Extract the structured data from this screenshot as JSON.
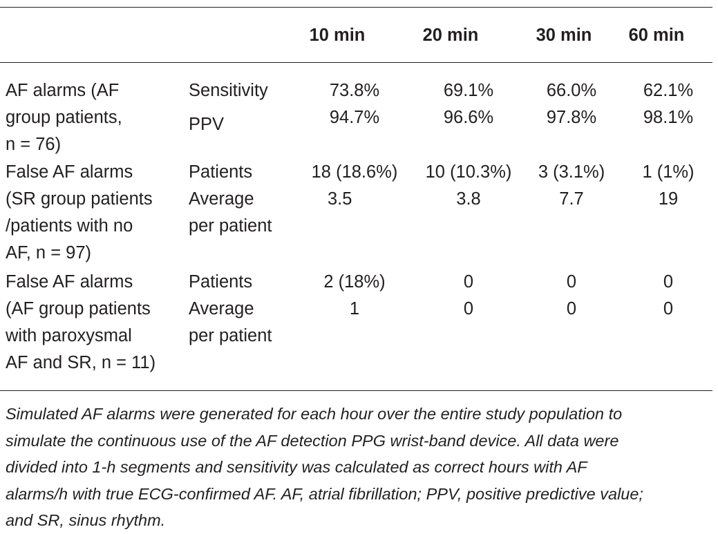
{
  "header": {
    "col1": "",
    "col2": "",
    "times": [
      "10 min",
      "20 min",
      "30 min",
      "60 min"
    ]
  },
  "groups": [
    {
      "label_lines": [
        "AF alarms (AF",
        "group patients,",
        "n = 76)"
      ],
      "metrics": [
        {
          "name_lines": [
            "Sensitivity"
          ],
          "values": [
            "73.8%",
            "69.1%",
            "66.0%",
            "62.1%"
          ]
        },
        {
          "name_lines": [
            "PPV"
          ],
          "values": [
            "94.7%",
            "96.6%",
            "97.8%",
            "98.1%"
          ]
        }
      ]
    },
    {
      "label_lines": [
        "False AF alarms",
        "(SR group patients",
        "/patients with no",
        "AF, n = 97)"
      ],
      "metrics": [
        {
          "name_lines": [
            "Patients"
          ],
          "values": [
            "18 (18.6%)",
            "10 (10.3%)",
            "3 (3.1%)",
            "1 (1%)"
          ]
        },
        {
          "name_lines": [
            "Average",
            "per patient"
          ],
          "values": [
            "3.5",
            "3.8",
            "7.7",
            "19"
          ]
        }
      ]
    },
    {
      "label_lines": [
        "False AF alarms",
        "(AF group patients",
        "with paroxysmal",
        "AF and SR, n = 11)"
      ],
      "metrics": [
        {
          "name_lines": [
            "Patients"
          ],
          "values": [
            "2 (18%)",
            "0",
            "0",
            "0"
          ]
        },
        {
          "name_lines": [
            "Average",
            "per patient"
          ],
          "values": [
            "1",
            "0",
            "0",
            "0"
          ]
        }
      ]
    }
  ],
  "footnote_lines": [
    "Simulated AF alarms were generated for each hour over the entire study population to",
    "simulate the continuous use of the AF detection PPG wrist-band device. All data were",
    "divided into 1-h segments and sensitivity was calculated as correct hours with AF",
    "alarms/h with true ECG-confirmed AF. AF, atrial fibrillation; PPV, positive predictive value;",
    "and SR, sinus rhythm."
  ]
}
